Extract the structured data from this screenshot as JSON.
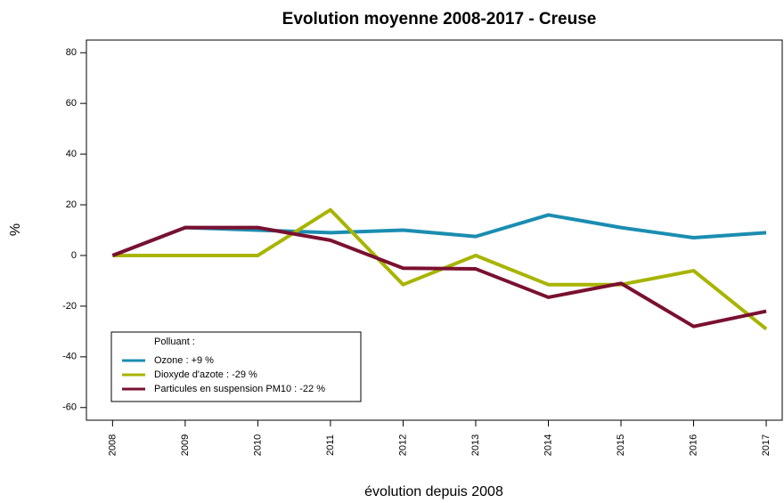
{
  "chart_data": {
    "type": "line",
    "title": "Evolution moyenne 2008-2017 - Creuse",
    "x_label": "évolution depuis 2008",
    "y_label": "%",
    "x": [
      2008,
      2009,
      2010,
      2011,
      2012,
      2013,
      2014,
      2015,
      2016,
      2017
    ],
    "xlim": [
      2007.64,
      2017.22
    ],
    "xticks": [
      2008,
      2009,
      2010,
      2011,
      2012,
      2013,
      2014,
      2015,
      2016,
      2017
    ],
    "ylim": [
      -65,
      85
    ],
    "yticks": [
      -60,
      -40,
      -20,
      0,
      20,
      40,
      60,
      80
    ],
    "legend_title": "Polluant :",
    "legend_position": "bottom-left",
    "series": [
      {
        "name": "Ozone : +9 %",
        "color": "#1a8db0",
        "values": [
          0,
          11,
          10,
          9,
          10,
          7.5,
          16,
          11,
          7,
          9
        ]
      },
      {
        "name": "Dioxyde d'azote : -29 %",
        "color": "#a8b400",
        "values": [
          0,
          0,
          0,
          18,
          -11.5,
          0,
          -11.5,
          -11.5,
          -6,
          -29
        ]
      },
      {
        "name": "Particules en suspension PM10 : -22 %",
        "color": "#7a1030",
        "values": [
          0,
          11,
          11,
          6,
          -5,
          -5.3,
          -16.5,
          -11,
          -28,
          -22
        ]
      }
    ]
  }
}
